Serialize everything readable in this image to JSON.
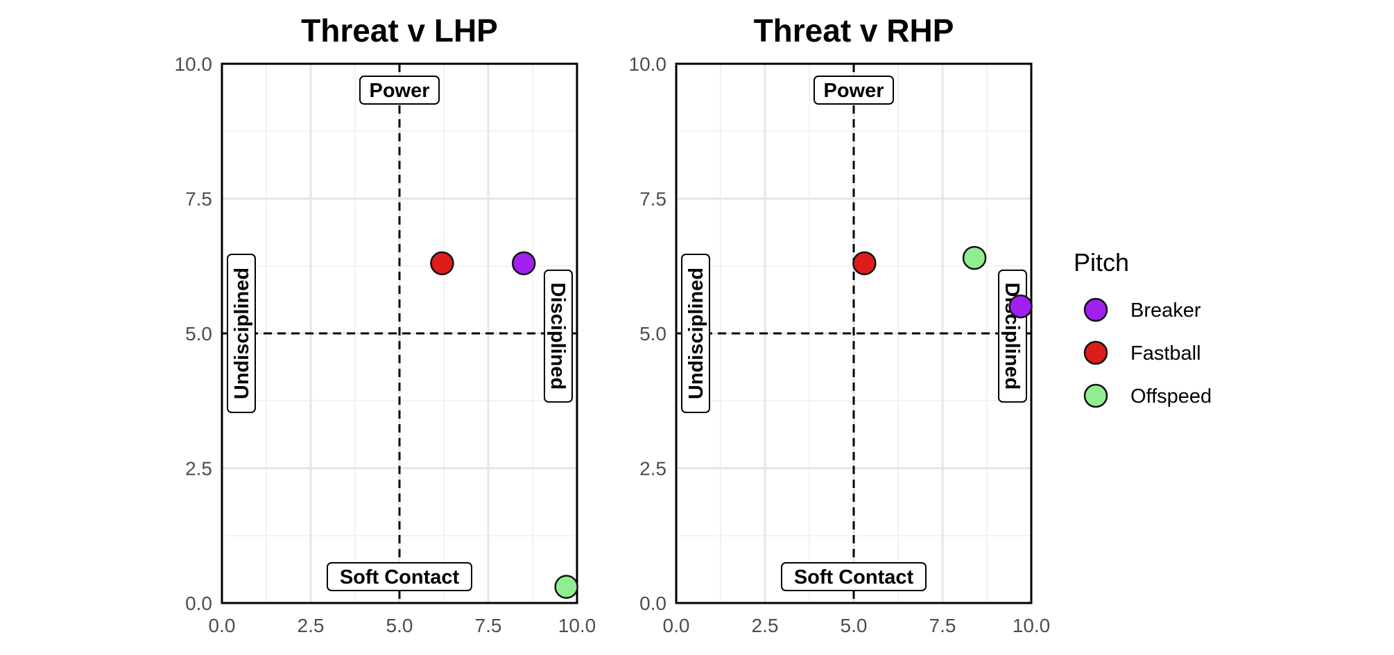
{
  "chart_data": [
    {
      "type": "scatter",
      "title": "Threat v LHP",
      "xlim": [
        0,
        10
      ],
      "ylim": [
        0,
        10
      ],
      "x_ticks": [
        "0.0",
        "2.5",
        "5.0",
        "7.5",
        "10.0"
      ],
      "y_ticks": [
        "0.0",
        "2.5",
        "5.0",
        "7.5",
        "10.0"
      ],
      "grid": true,
      "reference_lines": {
        "x": 5,
        "y": 5,
        "style": "dashed"
      },
      "quadrant_labels": {
        "top": "Power",
        "bottom": "Soft Contact",
        "left": "Undisciplined",
        "right": "Disciplined"
      },
      "series": [
        {
          "name": "Breaker",
          "x": [
            8.5
          ],
          "y": [
            6.3
          ]
        },
        {
          "name": "Fastball",
          "x": [
            6.2
          ],
          "y": [
            6.3
          ]
        },
        {
          "name": "Offspeed",
          "x": [
            9.7
          ],
          "y": [
            0.3
          ]
        }
      ]
    },
    {
      "type": "scatter",
      "title": "Threat v RHP",
      "xlim": [
        0,
        10
      ],
      "ylim": [
        0,
        10
      ],
      "x_ticks": [
        "0.0",
        "2.5",
        "5.0",
        "7.5",
        "10.0"
      ],
      "y_ticks": [
        "0.0",
        "2.5",
        "5.0",
        "7.5",
        "10.0"
      ],
      "grid": true,
      "reference_lines": {
        "x": 5,
        "y": 5,
        "style": "dashed"
      },
      "quadrant_labels": {
        "top": "Power",
        "bottom": "Soft Contact",
        "left": "Undisciplined",
        "right": "Disciplined"
      },
      "series": [
        {
          "name": "Breaker",
          "x": [
            9.7
          ],
          "y": [
            5.5
          ]
        },
        {
          "name": "Fastball",
          "x": [
            5.3
          ],
          "y": [
            6.3
          ]
        },
        {
          "name": "Offspeed",
          "x": [
            8.4
          ],
          "y": [
            6.4
          ]
        }
      ]
    }
  ],
  "legend": {
    "title": "Pitch",
    "placement": "right",
    "items": [
      {
        "label": "Breaker",
        "color": "#a020f0"
      },
      {
        "label": "Fastball",
        "color": "#dd1c1c"
      },
      {
        "label": "Offspeed",
        "color": "#90ee90"
      }
    ]
  },
  "colors": {
    "Breaker": "#a020f0",
    "Fastball": "#dd1c1c",
    "Offspeed": "#90ee90",
    "grid_major": "#e6e6e6",
    "grid_minor": "#f2f2f2"
  }
}
